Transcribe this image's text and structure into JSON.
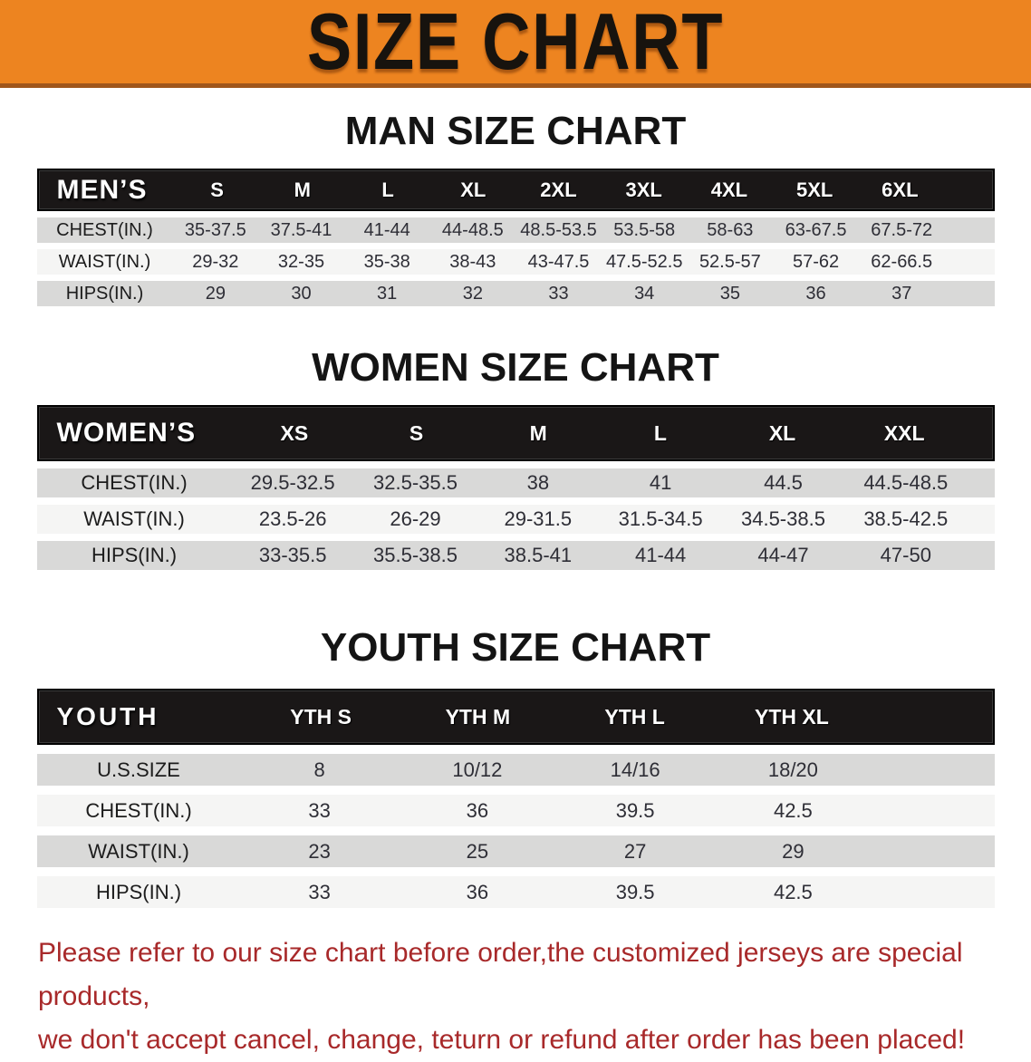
{
  "banner": {
    "title": "SIZE CHART"
  },
  "tables": [
    {
      "heading": "MAN SIZE CHART",
      "group_label": "MEN’S",
      "columns": [
        "S",
        "M",
        "L",
        "XL",
        "2XL",
        "3XL",
        "4XL",
        "5XL",
        "6XL"
      ],
      "rows": [
        {
          "label": "CHEST(IN.)",
          "values": [
            "35-37.5",
            "37.5-41",
            "41-44",
            "44-48.5",
            "48.5-53.5",
            "53.5-58",
            "58-63",
            "63-67.5",
            "67.5-72"
          ]
        },
        {
          "label": "WAIST(IN.)",
          "values": [
            "29-32",
            "32-35",
            "35-38",
            "38-43",
            "43-47.5",
            "47.5-52.5",
            "52.5-57",
            "57-62",
            "62-66.5"
          ]
        },
        {
          "label": "HIPS(IN.)",
          "values": [
            "29",
            "30",
            "31",
            "32",
            "33",
            "34",
            "35",
            "36",
            "37"
          ]
        }
      ]
    },
    {
      "heading": "WOMEN SIZE CHART",
      "group_label": "WOMEN’S",
      "columns": [
        "XS",
        "S",
        "M",
        "L",
        "XL",
        "XXL"
      ],
      "rows": [
        {
          "label": "CHEST(IN.)",
          "values": [
            "29.5-32.5",
            "32.5-35.5",
            "38",
            "41",
            "44.5",
            "44.5-48.5"
          ]
        },
        {
          "label": "WAIST(IN.)",
          "values": [
            "23.5-26",
            "26-29",
            "29-31.5",
            "31.5-34.5",
            "34.5-38.5",
            "38.5-42.5"
          ]
        },
        {
          "label": "HIPS(IN.)",
          "values": [
            "33-35.5",
            "35.5-38.5",
            "38.5-41",
            "41-44",
            "44-47",
            "47-50"
          ]
        }
      ]
    },
    {
      "heading": "YOUTH SIZE CHART",
      "group_label": "YOUTH",
      "columns": [
        "YTH S",
        "YTH M",
        "YTH L",
        "YTH XL"
      ],
      "rows": [
        {
          "label": "U.S.SIZE",
          "values": [
            "8",
            "10/12",
            "14/16",
            "18/20"
          ]
        },
        {
          "label": "CHEST(IN.)",
          "values": [
            "33",
            "36",
            "39.5",
            "42.5"
          ]
        },
        {
          "label": "WAIST(IN.)",
          "values": [
            "23",
            "25",
            "27",
            "29"
          ]
        },
        {
          "label": "HIPS(IN.)",
          "values": [
            "33",
            "36",
            "39.5",
            "42.5"
          ]
        }
      ]
    }
  ],
  "disclaimer": {
    "line1": "Please refer to our size chart before order,the customized jerseys are special products,",
    "line2": "we don't accept cancel, change, teturn or refund after order has been placed!"
  },
  "colors": {
    "banner_orange": "#ed8420",
    "banner_edge": "#a0561b",
    "header_black": "#1a1717",
    "row_gray": "#d9d9d8",
    "row_light": "#f5f5f4",
    "disclaimer_red": "#a8292a"
  }
}
